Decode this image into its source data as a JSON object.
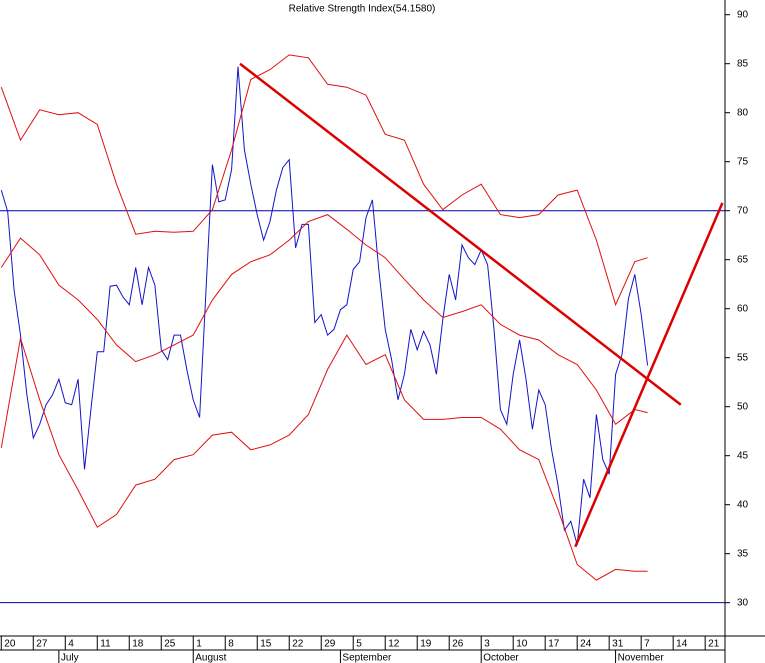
{
  "chart_data": {
    "type": "line",
    "title": "Relative Strength Index(54.1580)",
    "x": [
      0,
      1,
      2,
      3,
      4,
      5,
      6,
      7,
      8,
      9,
      10,
      11,
      12,
      13,
      14,
      15,
      16,
      17,
      18,
      19,
      20,
      21,
      22,
      23,
      24,
      25,
      26,
      27,
      28,
      29,
      30,
      31,
      32,
      33,
      34,
      35,
      36,
      37,
      38,
      39,
      40,
      41,
      42,
      43,
      44,
      45,
      46,
      47,
      48,
      49,
      50,
      51,
      52,
      53,
      54,
      55,
      56,
      57,
      58,
      59,
      60,
      61,
      62,
      63,
      64,
      65,
      66,
      67,
      68,
      69,
      70,
      71,
      72,
      73,
      74,
      75,
      76,
      77,
      78,
      79,
      80,
      81,
      82,
      83,
      84,
      85,
      86,
      87,
      88,
      89,
      90,
      91,
      92,
      93,
      94,
      95,
      96,
      97,
      98,
      99,
      100,
      101
    ],
    "series": [
      {
        "color": "#1414c8",
        "width": 1,
        "values": [
          72.1,
          69.9,
          61.9,
          57.3,
          51.2,
          46.8,
          48.2,
          50.2,
          51.2,
          52.8,
          50.4,
          50.2,
          52.8,
          43.6,
          49.7,
          55.6,
          55.6,
          62.3,
          62.4,
          61.2,
          60.4,
          64.2,
          60.4,
          64.2,
          62.4,
          55.8,
          54.8,
          57.3,
          57.3,
          53.8,
          50.7,
          48.9,
          61.9,
          74.7,
          70.9,
          71.1,
          74.2,
          84.7,
          76.2,
          72.7,
          69.6,
          67.0,
          68.9,
          72.1,
          74.4,
          75.2,
          66.2,
          68.6,
          68.6,
          58.6,
          59.4,
          57.3,
          57.9,
          59.9,
          60.4,
          64.0,
          64.8,
          69.3,
          71.1,
          64.0,
          57.9,
          54.8,
          50.7,
          53.3,
          57.9,
          55.8,
          57.7,
          56.3,
          53.3,
          58.9,
          63.5,
          60.9,
          66.5,
          65.2,
          64.5,
          66.0,
          64.5,
          57.9,
          49.7,
          48.2,
          53.3,
          56.8,
          52.8,
          47.7,
          51.7,
          50.2,
          45.6,
          42.0,
          37.4,
          38.3,
          35.9,
          42.6,
          40.7,
          49.2,
          44.6,
          43.1,
          53.3,
          55.3,
          61.0,
          63.5,
          59.4,
          54.2
        ]
      },
      {
        "color": "#e01010",
        "width": 1,
        "x": [
          0,
          3,
          6,
          9,
          12,
          15,
          18,
          21,
          24,
          27,
          30,
          33,
          36,
          39,
          42,
          45,
          48,
          51,
          54,
          57,
          60,
          63,
          66,
          69,
          72,
          75,
          78,
          81,
          84,
          87,
          90,
          93,
          96,
          99,
          101
        ],
        "values": [
          82.6,
          77.2,
          80.3,
          79.8,
          80.0,
          78.8,
          72.7,
          67.6,
          67.9,
          67.8,
          67.9,
          70.1,
          76.2,
          83.4,
          84.4,
          85.9,
          85.6,
          82.9,
          82.6,
          81.8,
          77.8,
          77.2,
          72.7,
          70.1,
          71.6,
          72.7,
          69.6,
          69.3,
          69.6,
          71.6,
          72.1,
          67.0,
          60.4,
          64.8,
          65.2
        ]
      },
      {
        "color": "#e01010",
        "width": 1,
        "x": [
          0,
          3,
          6,
          9,
          12,
          15,
          18,
          21,
          24,
          27,
          30,
          33,
          36,
          39,
          42,
          45,
          48,
          51,
          54,
          57,
          60,
          63,
          66,
          69,
          72,
          75,
          78,
          81,
          84,
          87,
          90,
          93,
          96,
          99,
          101
        ],
        "values": [
          64.2,
          67.2,
          65.5,
          62.4,
          60.9,
          58.9,
          56.3,
          54.6,
          55.3,
          56.3,
          57.3,
          60.9,
          63.5,
          64.8,
          65.5,
          67.0,
          68.9,
          69.6,
          68.1,
          66.5,
          65.2,
          63.0,
          60.9,
          59.1,
          59.7,
          60.4,
          58.4,
          57.3,
          56.8,
          55.3,
          54.3,
          51.7,
          48.2,
          49.7,
          49.4
        ]
      },
      {
        "color": "#e01010",
        "width": 1,
        "x": [
          0,
          3,
          6,
          9,
          12,
          15,
          18,
          21,
          24,
          27,
          30,
          33,
          36,
          39,
          42,
          45,
          48,
          51,
          54,
          57,
          60,
          63,
          66,
          69,
          72,
          75,
          78,
          81,
          84,
          87,
          90,
          93,
          96,
          99,
          101
        ],
        "values": [
          45.8,
          57.0,
          50.7,
          45.1,
          41.5,
          37.7,
          39.0,
          42.0,
          42.6,
          44.6,
          45.1,
          47.1,
          47.4,
          45.6,
          46.1,
          47.1,
          49.2,
          53.8,
          57.3,
          54.3,
          55.3,
          50.7,
          48.7,
          48.7,
          48.9,
          48.9,
          47.7,
          45.6,
          44.6,
          39.5,
          33.9,
          32.3,
          33.4,
          33.2,
          33.2
        ]
      },
      {
        "color": "#dd0000",
        "width": 2.5,
        "x": [
          37.3,
          106.2
        ],
        "values": [
          85,
          50.2
        ]
      },
      {
        "color": "#dd0000",
        "width": 2.5,
        "x": [
          89.7,
          112.7
        ],
        "values": [
          35.7,
          70.8
        ]
      }
    ],
    "reference_lines": [
      {
        "value": 70,
        "color": "#0000aa"
      },
      {
        "value": 30,
        "color": "#0000aa"
      }
    ],
    "xlim": [
      -0.2,
      113.1
    ],
    "ylim": [
      26.6,
      91.5
    ],
    "yticks": [
      30,
      35,
      40,
      45,
      50,
      55,
      60,
      65,
      70,
      75,
      80,
      85,
      90
    ],
    "xticks": [
      {
        "value": 0,
        "label": "20"
      },
      {
        "value": 5,
        "label": "27"
      },
      {
        "value": 10,
        "label": "4"
      },
      {
        "value": 15,
        "label": "11"
      },
      {
        "value": 20,
        "label": "18"
      },
      {
        "value": 25,
        "label": "25"
      },
      {
        "value": 30,
        "label": "1"
      },
      {
        "value": 35,
        "label": "8"
      },
      {
        "value": 40,
        "label": "15"
      },
      {
        "value": 45,
        "label": "22"
      },
      {
        "value": 50,
        "label": "29"
      },
      {
        "value": 55,
        "label": "5"
      },
      {
        "value": 60,
        "label": "12"
      },
      {
        "value": 65,
        "label": "19"
      },
      {
        "value": 70,
        "label": "26"
      },
      {
        "value": 75,
        "label": "3"
      },
      {
        "value": 80,
        "label": "10"
      },
      {
        "value": 85,
        "label": "17"
      },
      {
        "value": 90,
        "label": "24"
      },
      {
        "value": 95,
        "label": "31"
      },
      {
        "value": 100,
        "label": "7"
      },
      {
        "value": 105,
        "label": "14"
      },
      {
        "value": 110,
        "label": "21"
      }
    ],
    "month_ticks": [
      {
        "value": 9,
        "label": "July"
      },
      {
        "value": 30,
        "label": "August"
      },
      {
        "value": 53,
        "label": "September"
      },
      {
        "value": 75,
        "label": "October"
      },
      {
        "value": 96,
        "label": "November"
      }
    ]
  }
}
